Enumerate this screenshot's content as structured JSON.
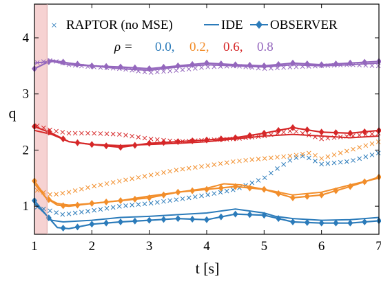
{
  "chart_data": {
    "type": "line",
    "title": "",
    "xlabel": "t [s]",
    "ylabel": "q",
    "xlim": [
      1,
      7
    ],
    "ylim": [
      0.5,
      4.6
    ],
    "xticks": [
      1,
      2,
      3,
      4,
      5,
      6,
      7
    ],
    "yticks": [
      1,
      2,
      3,
      4
    ],
    "grid": false,
    "legend_position": "top",
    "legend": {
      "entries": [
        {
          "label": "RAPTOR (no MSE)",
          "marker": "x"
        },
        {
          "label": "IDE",
          "marker": "line"
        },
        {
          "label": "OBSERVER",
          "marker": "diamond-line"
        }
      ],
      "rho_label": "ρ =",
      "rho_values": [
        {
          "text": "0.0,",
          "color": "#2b7bba"
        },
        {
          "text": "0.2,",
          "color": "#f28e2b"
        },
        {
          "text": "0.6,",
          "color": "#d62728"
        },
        {
          "text": "0.8",
          "color": "#9467bd"
        }
      ]
    },
    "shaded_region": {
      "x_start": 1.0,
      "x_end": 1.22,
      "color": "#f4c7c7"
    },
    "series": [
      {
        "rho": "0.0",
        "color": "#2b7bba",
        "raptor": {
          "x": [
            1.0,
            1.5,
            2.0,
            2.5,
            3.0,
            3.5,
            4.0,
            4.5,
            5.0,
            5.2,
            5.5,
            5.7,
            6.0,
            6.5,
            7.0
          ],
          "y": [
            1.0,
            0.85,
            0.92,
            1.0,
            1.05,
            1.12,
            1.2,
            1.3,
            1.5,
            1.65,
            1.85,
            1.9,
            1.75,
            1.8,
            1.95
          ]
        },
        "ide": {
          "x": [
            1.0,
            1.2,
            1.3,
            1.5,
            2.0,
            2.5,
            3.0,
            3.5,
            4.0,
            4.5,
            5.0,
            5.2,
            5.5,
            6.0,
            6.5,
            7.0
          ],
          "y": [
            1.05,
            0.85,
            0.75,
            0.72,
            0.75,
            0.8,
            0.82,
            0.85,
            0.88,
            0.95,
            0.88,
            0.82,
            0.78,
            0.75,
            0.76,
            0.8
          ]
        },
        "observer": {
          "x": [
            1.0,
            1.2,
            1.4,
            1.6,
            2.0,
            2.5,
            3.0,
            3.5,
            4.0,
            4.5,
            5.0,
            5.5,
            6.0,
            6.5,
            7.0
          ],
          "y": [
            1.1,
            0.85,
            0.62,
            0.6,
            0.68,
            0.72,
            0.75,
            0.78,
            0.76,
            0.86,
            0.84,
            0.72,
            0.7,
            0.7,
            0.74
          ]
        }
      },
      {
        "rho": "0.2",
        "color": "#f28e2b",
        "raptor": {
          "x": [
            1.0,
            1.3,
            1.6,
            2.0,
            2.5,
            3.0,
            3.5,
            4.0,
            4.5,
            5.0,
            5.5,
            5.8,
            6.0,
            6.5,
            7.0
          ],
          "y": [
            1.3,
            1.2,
            1.25,
            1.35,
            1.45,
            1.55,
            1.65,
            1.72,
            1.8,
            1.85,
            1.9,
            1.95,
            1.85,
            2.0,
            2.15
          ]
        },
        "ide": {
          "x": [
            1.0,
            1.2,
            1.4,
            1.6,
            2.0,
            2.5,
            3.0,
            3.5,
            4.0,
            4.3,
            4.6,
            5.0,
            5.5,
            6.0,
            6.5,
            7.0
          ],
          "y": [
            1.4,
            1.15,
            1.05,
            1.02,
            1.05,
            1.1,
            1.18,
            1.25,
            1.32,
            1.4,
            1.38,
            1.3,
            1.2,
            1.25,
            1.38,
            1.5
          ]
        },
        "observer": {
          "x": [
            1.0,
            1.2,
            1.4,
            1.6,
            2.0,
            2.5,
            3.0,
            3.5,
            4.0,
            4.5,
            5.0,
            5.5,
            6.0,
            6.5,
            7.0
          ],
          "y": [
            1.45,
            1.15,
            1.02,
            1.0,
            1.05,
            1.1,
            1.15,
            1.25,
            1.3,
            1.35,
            1.3,
            1.15,
            1.2,
            1.35,
            1.52
          ]
        }
      },
      {
        "rho": "0.6",
        "color": "#d62728",
        "raptor": {
          "x": [
            1.0,
            1.3,
            1.6,
            2.0,
            2.5,
            3.0,
            3.5,
            4.0,
            4.5,
            5.0,
            5.5,
            6.0,
            6.5,
            7.0
          ],
          "y": [
            2.45,
            2.35,
            2.3,
            2.3,
            2.28,
            2.2,
            2.15,
            2.18,
            2.2,
            2.25,
            2.35,
            2.2,
            2.25,
            2.3
          ]
        },
        "ide": {
          "x": [
            1.0,
            1.3,
            1.6,
            2.0,
            2.5,
            3.0,
            3.5,
            4.0,
            4.5,
            5.0,
            5.5,
            6.0,
            6.5,
            7.0
          ],
          "y": [
            2.35,
            2.28,
            2.15,
            2.1,
            2.08,
            2.1,
            2.12,
            2.15,
            2.2,
            2.25,
            2.28,
            2.25,
            2.22,
            2.25
          ]
        },
        "observer": {
          "x": [
            1.0,
            1.3,
            1.6,
            2.0,
            2.5,
            3.0,
            3.5,
            4.0,
            4.5,
            5.0,
            5.5,
            6.0,
            6.5,
            7.0
          ],
          "y": [
            2.42,
            2.3,
            2.15,
            2.1,
            2.05,
            2.12,
            2.15,
            2.18,
            2.22,
            2.3,
            2.4,
            2.32,
            2.3,
            2.35
          ]
        }
      },
      {
        "rho": "0.8",
        "color": "#9467bd",
        "raptor": {
          "x": [
            1.0,
            1.3,
            1.6,
            2.0,
            2.5,
            3.0,
            3.5,
            4.0,
            4.5,
            5.0,
            5.5,
            6.0,
            6.5,
            7.0
          ],
          "y": [
            3.55,
            3.6,
            3.52,
            3.48,
            3.45,
            3.38,
            3.42,
            3.48,
            3.5,
            3.45,
            3.48,
            3.5,
            3.52,
            3.5
          ]
        },
        "ide": {
          "x": [
            1.0,
            1.3,
            1.6,
            2.0,
            2.5,
            3.0,
            3.5,
            4.0,
            4.5,
            5.0,
            5.5,
            6.0,
            6.5,
            7.0
          ],
          "y": [
            3.55,
            3.58,
            3.52,
            3.5,
            3.45,
            3.42,
            3.48,
            3.52,
            3.5,
            3.48,
            3.52,
            3.5,
            3.52,
            3.55
          ]
        },
        "observer": {
          "x": [
            1.0,
            1.3,
            1.6,
            2.0,
            2.5,
            3.0,
            3.5,
            4.0,
            4.5,
            5.0,
            5.5,
            6.0,
            6.5,
            7.0
          ],
          "y": [
            3.45,
            3.6,
            3.55,
            3.5,
            3.48,
            3.45,
            3.5,
            3.55,
            3.52,
            3.5,
            3.55,
            3.52,
            3.55,
            3.58
          ]
        }
      }
    ]
  }
}
